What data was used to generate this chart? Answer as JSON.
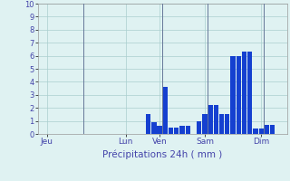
{
  "xlabel": "Précipitations 24h ( mm )",
  "background_color": "#dff2f2",
  "bar_color": "#1540d0",
  "grid_color": "#aacfcf",
  "axis_label_color": "#4444aa",
  "tick_color": "#4444aa",
  "ylim": [
    0,
    10
  ],
  "yticks": [
    0,
    1,
    2,
    3,
    4,
    5,
    6,
    7,
    8,
    9,
    10
  ],
  "day_labels": [
    "Jeu",
    "Lun",
    "Ven",
    "Sam",
    "Dim"
  ],
  "day_tick_positions": [
    1,
    15,
    21,
    29,
    39
  ],
  "vline_positions": [
    8,
    22,
    30,
    40
  ],
  "vline_color": "#667799",
  "num_bars": 44,
  "bar_values": [
    0,
    0,
    0,
    0,
    0,
    0,
    0,
    0,
    0,
    0,
    0,
    0,
    0,
    0,
    0,
    0,
    0,
    0,
    0,
    1.5,
    0.9,
    0.6,
    3.6,
    0.5,
    0.5,
    0.6,
    0.6,
    0,
    1.0,
    1.5,
    2.2,
    2.2,
    1.5,
    1.5,
    6.0,
    6.0,
    6.3,
    6.3,
    0.4,
    0.4,
    0.7,
    0.7,
    0,
    0
  ]
}
